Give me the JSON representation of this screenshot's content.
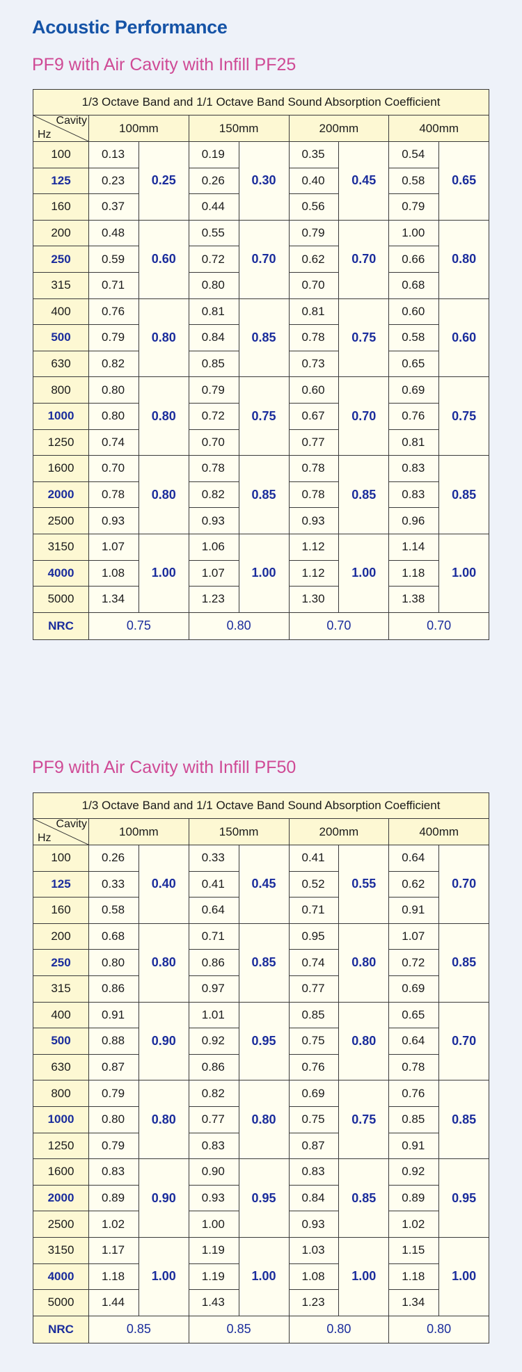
{
  "page_title": "Acoustic Performance",
  "tables": [
    {
      "section_title": "PF9 with Air Cavity with Infill PF25",
      "caption": "1/3 Octave Band and 1/1 Octave Band Sound Absorption Coefficient",
      "corner": {
        "cavity": "Cavity",
        "hz": "Hz"
      },
      "cavities": [
        "100mm",
        "150mm",
        "200mm",
        "400mm"
      ],
      "groups": [
        {
          "hz": [
            "100",
            "125",
            "160"
          ],
          "third": [
            [
              "0.13",
              "0.23",
              "0.37"
            ],
            [
              "0.19",
              "0.26",
              "0.44"
            ],
            [
              "0.35",
              "0.40",
              "0.56"
            ],
            [
              "0.54",
              "0.58",
              "0.79"
            ]
          ],
          "octave": [
            "0.25",
            "0.30",
            "0.45",
            "0.65"
          ]
        },
        {
          "hz": [
            "200",
            "250",
            "315"
          ],
          "third": [
            [
              "0.48",
              "0.59",
              "0.71"
            ],
            [
              "0.55",
              "0.72",
              "0.80"
            ],
            [
              "0.79",
              "0.62",
              "0.70"
            ],
            [
              "1.00",
              "0.66",
              "0.68"
            ]
          ],
          "octave": [
            "0.60",
            "0.70",
            "0.70",
            "0.80"
          ]
        },
        {
          "hz": [
            "400",
            "500",
            "630"
          ],
          "third": [
            [
              "0.76",
              "0.79",
              "0.82"
            ],
            [
              "0.81",
              "0.84",
              "0.85"
            ],
            [
              "0.81",
              "0.78",
              "0.73"
            ],
            [
              "0.60",
              "0.58",
              "0.65"
            ]
          ],
          "octave": [
            "0.80",
            "0.85",
            "0.75",
            "0.60"
          ]
        },
        {
          "hz": [
            "800",
            "1000",
            "1250"
          ],
          "third": [
            [
              "0.80",
              "0.80",
              "0.74"
            ],
            [
              "0.79",
              "0.72",
              "0.70"
            ],
            [
              "0.60",
              "0.67",
              "0.77"
            ],
            [
              "0.69",
              "0.76",
              "0.81"
            ]
          ],
          "octave": [
            "0.80",
            "0.75",
            "0.70",
            "0.75"
          ]
        },
        {
          "hz": [
            "1600",
            "2000",
            "2500"
          ],
          "third": [
            [
              "0.70",
              "0.78",
              "0.93"
            ],
            [
              "0.78",
              "0.82",
              "0.93"
            ],
            [
              "0.78",
              "0.78",
              "0.93"
            ],
            [
              "0.83",
              "0.83",
              "0.96"
            ]
          ],
          "octave": [
            "0.80",
            "0.85",
            "0.85",
            "0.85"
          ]
        },
        {
          "hz": [
            "3150",
            "4000",
            "5000"
          ],
          "third": [
            [
              "1.07",
              "1.08",
              "1.34"
            ],
            [
              "1.06",
              "1.07",
              "1.23"
            ],
            [
              "1.12",
              "1.12",
              "1.30"
            ],
            [
              "1.14",
              "1.18",
              "1.38"
            ]
          ],
          "octave": [
            "1.00",
            "1.00",
            "1.00",
            "1.00"
          ]
        }
      ],
      "nrc_label": "NRC",
      "nrc": [
        "0.75",
        "0.80",
        "0.70",
        "0.70"
      ]
    },
    {
      "section_title": "PF9 with Air Cavity with Infill PF50",
      "caption": "1/3 Octave Band and 1/1 Octave Band Sound Absorption Coefficient",
      "corner": {
        "cavity": "Cavity",
        "hz": "Hz"
      },
      "cavities": [
        "100mm",
        "150mm",
        "200mm",
        "400mm"
      ],
      "groups": [
        {
          "hz": [
            "100",
            "125",
            "160"
          ],
          "third": [
            [
              "0.26",
              "0.33",
              "0.58"
            ],
            [
              "0.33",
              "0.41",
              "0.64"
            ],
            [
              "0.41",
              "0.52",
              "0.71"
            ],
            [
              "0.64",
              "0.62",
              "0.91"
            ]
          ],
          "octave": [
            "0.40",
            "0.45",
            "0.55",
            "0.70"
          ]
        },
        {
          "hz": [
            "200",
            "250",
            "315"
          ],
          "third": [
            [
              "0.68",
              "0.80",
              "0.86"
            ],
            [
              "0.71",
              "0.86",
              "0.97"
            ],
            [
              "0.95",
              "0.74",
              "0.77"
            ],
            [
              "1.07",
              "0.72",
              "0.69"
            ]
          ],
          "octave": [
            "0.80",
            "0.85",
            "0.80",
            "0.85"
          ]
        },
        {
          "hz": [
            "400",
            "500",
            "630"
          ],
          "third": [
            [
              "0.91",
              "0.88",
              "0.87"
            ],
            [
              "1.01",
              "0.92",
              "0.86"
            ],
            [
              "0.85",
              "0.75",
              "0.76"
            ],
            [
              "0.65",
              "0.64",
              "0.78"
            ]
          ],
          "octave": [
            "0.90",
            "0.95",
            "0.80",
            "0.70"
          ]
        },
        {
          "hz": [
            "800",
            "1000",
            "1250"
          ],
          "third": [
            [
              "0.79",
              "0.80",
              "0.79"
            ],
            [
              "0.82",
              "0.77",
              "0.83"
            ],
            [
              "0.69",
              "0.75",
              "0.87"
            ],
            [
              "0.76",
              "0.85",
              "0.91"
            ]
          ],
          "octave": [
            "0.80",
            "0.80",
            "0.75",
            "0.85"
          ]
        },
        {
          "hz": [
            "1600",
            "2000",
            "2500"
          ],
          "third": [
            [
              "0.83",
              "0.89",
              "1.02"
            ],
            [
              "0.90",
              "0.93",
              "1.00"
            ],
            [
              "0.83",
              "0.84",
              "0.93"
            ],
            [
              "0.92",
              "0.89",
              "1.02"
            ]
          ],
          "octave": [
            "0.90",
            "0.95",
            "0.85",
            "0.95"
          ]
        },
        {
          "hz": [
            "3150",
            "4000",
            "5000"
          ],
          "third": [
            [
              "1.17",
              "1.18",
              "1.44"
            ],
            [
              "1.19",
              "1.19",
              "1.43"
            ],
            [
              "1.03",
              "1.08",
              "1.23"
            ],
            [
              "1.15",
              "1.18",
              "1.34"
            ]
          ],
          "octave": [
            "1.00",
            "1.00",
            "1.00",
            "1.00"
          ]
        }
      ],
      "nrc_label": "NRC",
      "nrc": [
        "0.85",
        "0.85",
        "0.80",
        "0.80"
      ]
    }
  ]
}
